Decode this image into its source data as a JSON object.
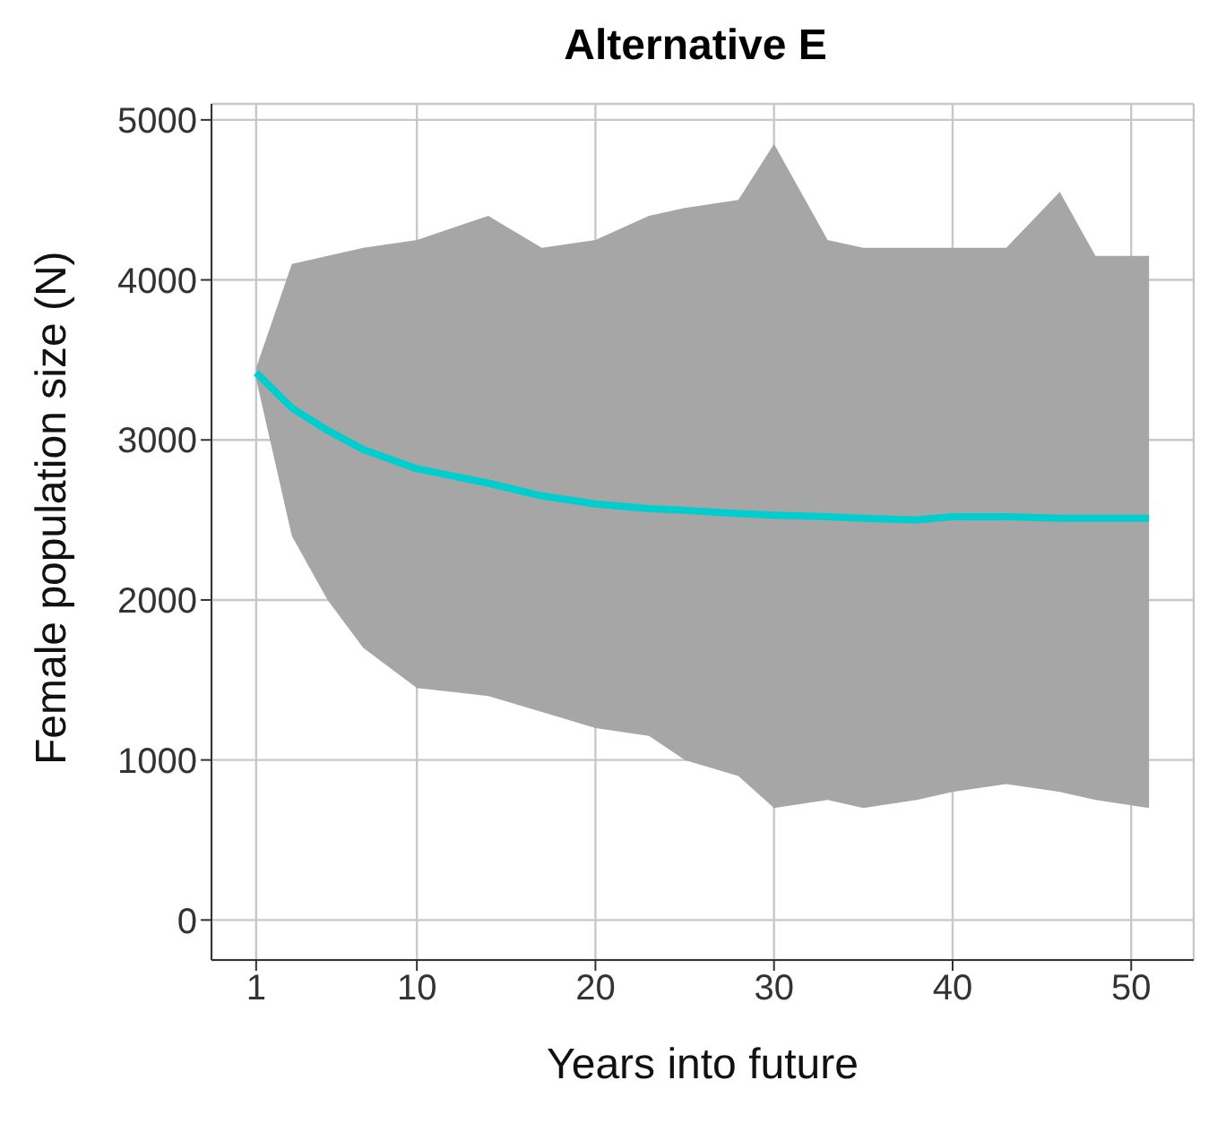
{
  "chart_data": {
    "type": "line",
    "title": "Alternative E",
    "xlabel": "Years into future",
    "ylabel": "Female population size (N)",
    "xlim": [
      -1.5,
      53.5
    ],
    "xticks": [
      1,
      10,
      20,
      30,
      40,
      50
    ],
    "ylim": [
      -250,
      5100
    ],
    "yticks": [
      0,
      1000,
      2000,
      3000,
      4000,
      5000
    ],
    "grid": true,
    "marker": "none",
    "line_style": "solid",
    "series": [
      {
        "color": "#00cdcd",
        "x": [
          1,
          3,
          5,
          7,
          10,
          14,
          17,
          20,
          23,
          25,
          28,
          30,
          33,
          35,
          38,
          40,
          43,
          46,
          48,
          51
        ],
        "values": [
          3420,
          3200,
          3060,
          2940,
          2820,
          2730,
          2650,
          2600,
          2570,
          2560,
          2540,
          2530,
          2520,
          2510,
          2500,
          2520,
          2520,
          2510,
          2510,
          2510
        ],
        "lower": [
          3380,
          2400,
          2000,
          1700,
          1450,
          1400,
          1300,
          1200,
          1150,
          1000,
          900,
          700,
          750,
          700,
          750,
          800,
          850,
          800,
          750,
          700
        ],
        "upper": [
          3450,
          4100,
          4150,
          4200,
          4250,
          4400,
          4200,
          4250,
          4400,
          4450,
          4500,
          4850,
          4250,
          4200,
          4200,
          4200,
          4200,
          4550,
          4150,
          4150
        ]
      }
    ]
  }
}
